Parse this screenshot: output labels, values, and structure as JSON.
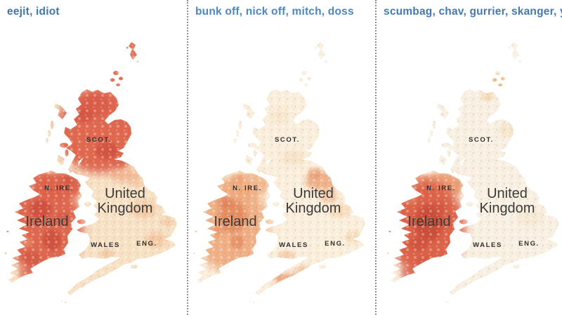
{
  "panels": [
    {
      "title": "eejit, idiot",
      "title_color": "#4077a9",
      "base_color": "#f7e2c6",
      "heat": [
        [
          142,
          185,
          62,
          62,
          "#e0684f",
          1,
          6
        ],
        [
          189,
          72,
          10,
          17,
          "#e0684f",
          0.9,
          2
        ],
        [
          168,
          110,
          18,
          14,
          "#e0684f",
          0.9,
          2
        ],
        [
          135,
          150,
          22,
          16,
          "#d85a45",
          0.75,
          4
        ],
        [
          152,
          215,
          16,
          12,
          "#cc4b3a",
          0.7,
          2
        ],
        [
          120,
          165,
          12,
          10,
          "#cc4b3a",
          0.5,
          2
        ],
        [
          172,
          232,
          10,
          8,
          "#d85a45",
          0.6,
          2
        ],
        [
          178,
          250,
          22,
          10,
          "#ec9b73",
          0.55,
          4
        ],
        [
          86,
          265,
          34,
          20,
          "#dd6149",
          0.95,
          4
        ],
        [
          97,
          257,
          9,
          7,
          "#cc4b3a",
          0.5,
          2
        ],
        [
          58,
          255,
          14,
          10,
          "#dd6149",
          0.8,
          2
        ],
        [
          62,
          325,
          56,
          68,
          "#dd6149",
          0.95,
          6
        ],
        [
          58,
          298,
          16,
          13,
          "#c74534",
          0.65,
          2
        ],
        [
          74,
          342,
          13,
          15,
          "#c74534",
          0.6,
          2
        ],
        [
          45,
          368,
          13,
          10,
          "#d05140",
          0.6,
          2
        ],
        [
          90,
          310,
          10,
          8,
          "#d05140",
          0.5,
          2
        ],
        [
          48,
          390,
          22,
          12,
          "#d86049",
          0.7,
          4
        ],
        [
          35,
          345,
          10,
          8,
          "#eda077",
          0.5,
          2
        ],
        [
          205,
          298,
          18,
          13,
          "#f2c096",
          0.7,
          4
        ],
        [
          222,
          342,
          16,
          11,
          "#f0b98c",
          0.6,
          4
        ],
        [
          180,
          398,
          22,
          10,
          "#f2c096",
          0.65,
          4
        ],
        [
          152,
          362,
          10,
          8,
          "#f0b98c",
          0.5,
          2
        ],
        [
          238,
          316,
          10,
          8,
          "#f2c096",
          0.5,
          2
        ],
        [
          196,
          260,
          12,
          9,
          "#f0b98c",
          0.4,
          2
        ]
      ]
    },
    {
      "title": "bunk off, nick off, mitch, doss",
      "title_color": "#4d87c3",
      "base_color": "#faefdc",
      "heat": [
        [
          192,
          258,
          26,
          14,
          "#eca275",
          0.8,
          4
        ],
        [
          180,
          247,
          10,
          8,
          "#e58e60",
          0.5,
          2
        ],
        [
          200,
          280,
          13,
          10,
          "#f0b488",
          0.55,
          2
        ],
        [
          215,
          300,
          16,
          10,
          "#f4cda4",
          0.6,
          4
        ],
        [
          148,
          400,
          24,
          11,
          "#e89a6b",
          0.7,
          4
        ],
        [
          128,
          394,
          9,
          7,
          "#e89a6b",
          0.5,
          2
        ],
        [
          165,
          385,
          12,
          8,
          "#f0b488",
          0.5,
          2
        ],
        [
          140,
          365,
          12,
          8,
          "#f0b488",
          0.5,
          2
        ],
        [
          235,
          338,
          12,
          9,
          "#f4cda4",
          0.5,
          2
        ],
        [
          150,
          225,
          18,
          10,
          "#f5dcba",
          0.6,
          4
        ],
        [
          130,
          165,
          14,
          10,
          "#f5dcba",
          0.45,
          4
        ],
        [
          85,
          263,
          32,
          18,
          "#efae80",
          0.8,
          4
        ],
        [
          72,
          255,
          8,
          6,
          "#e58e60",
          0.45,
          2
        ],
        [
          60,
          322,
          54,
          66,
          "#efa677",
          0.85,
          6
        ],
        [
          63,
          308,
          20,
          24,
          "#e07f53",
          0.7,
          4
        ],
        [
          52,
          288,
          10,
          8,
          "#db744a",
          0.5,
          2
        ],
        [
          70,
          345,
          10,
          10,
          "#db744a",
          0.45,
          2
        ],
        [
          42,
          330,
          8,
          7,
          "#e07f53",
          0.4,
          2
        ]
      ]
    },
    {
      "title": "scumbag, chav, gurrier, skanger, y",
      "title_color": "#4379b3",
      "base_color": "#f8f0e2",
      "heat": [
        [
          160,
          118,
          16,
          13,
          "#efb176",
          0.85,
          2
        ],
        [
          150,
          137,
          9,
          7,
          "#f3c893",
          0.55,
          2
        ],
        [
          178,
          185,
          12,
          10,
          "#f3dbb6",
          0.5,
          2
        ],
        [
          210,
          310,
          18,
          12,
          "#f4e3c6",
          0.5,
          4
        ],
        [
          86,
          264,
          32,
          18,
          "#eb9265",
          0.85,
          4
        ],
        [
          55,
          258,
          12,
          9,
          "#e8875f",
          0.6,
          2
        ],
        [
          62,
          325,
          56,
          68,
          "#dc6349",
          1,
          6
        ],
        [
          66,
          318,
          20,
          26,
          "#c64936",
          0.8,
          4
        ],
        [
          52,
          348,
          13,
          10,
          "#c64936",
          0.55,
          2
        ],
        [
          80,
          297,
          11,
          9,
          "#cf5240",
          0.6,
          2
        ],
        [
          60,
          372,
          10,
          8,
          "#cf5240",
          0.5,
          2
        ],
        [
          48,
          390,
          22,
          12,
          "#d86049",
          0.75,
          4
        ],
        [
          38,
          282,
          12,
          9,
          "#eb9265",
          0.5,
          2
        ]
      ]
    }
  ],
  "map_labels": {
    "scotland": "SCOT.",
    "n_ireland": "N. IRE.",
    "uk_line1": "United",
    "uk_line2": "Kingdom",
    "ireland": "Ireland",
    "wales": "WALES",
    "england": "ENG."
  },
  "divider_color": "#8e8e8e",
  "chart_data": {
    "type": "heatmap",
    "subtype": "choropleth-small-multiples",
    "geography": "United Kingdom and Ireland",
    "color_scale": {
      "low": "#faf0de",
      "high": "#c74534"
    },
    "maps": [
      {
        "title": "eejit, idiot",
        "regions": {
          "Scotland": "high",
          "Northern Ireland": "high",
          "Ireland": "high",
          "England": "low",
          "Wales": "very low"
        }
      },
      {
        "title": "bunk off, nick off, mitch, doss",
        "regions": {
          "Scotland": "very low",
          "Northern Ireland": "moderate",
          "Ireland": "moderate",
          "England": "low, with hotspots in northern England and the southwest",
          "Wales": "low"
        }
      },
      {
        "title": "scumbag, chav, gurrier, skanger, y",
        "regions": {
          "Scotland": "very low, hotspot in far north",
          "Northern Ireland": "moderate",
          "Ireland": "very high",
          "England": "very low",
          "Wales": "very low"
        }
      }
    ]
  }
}
